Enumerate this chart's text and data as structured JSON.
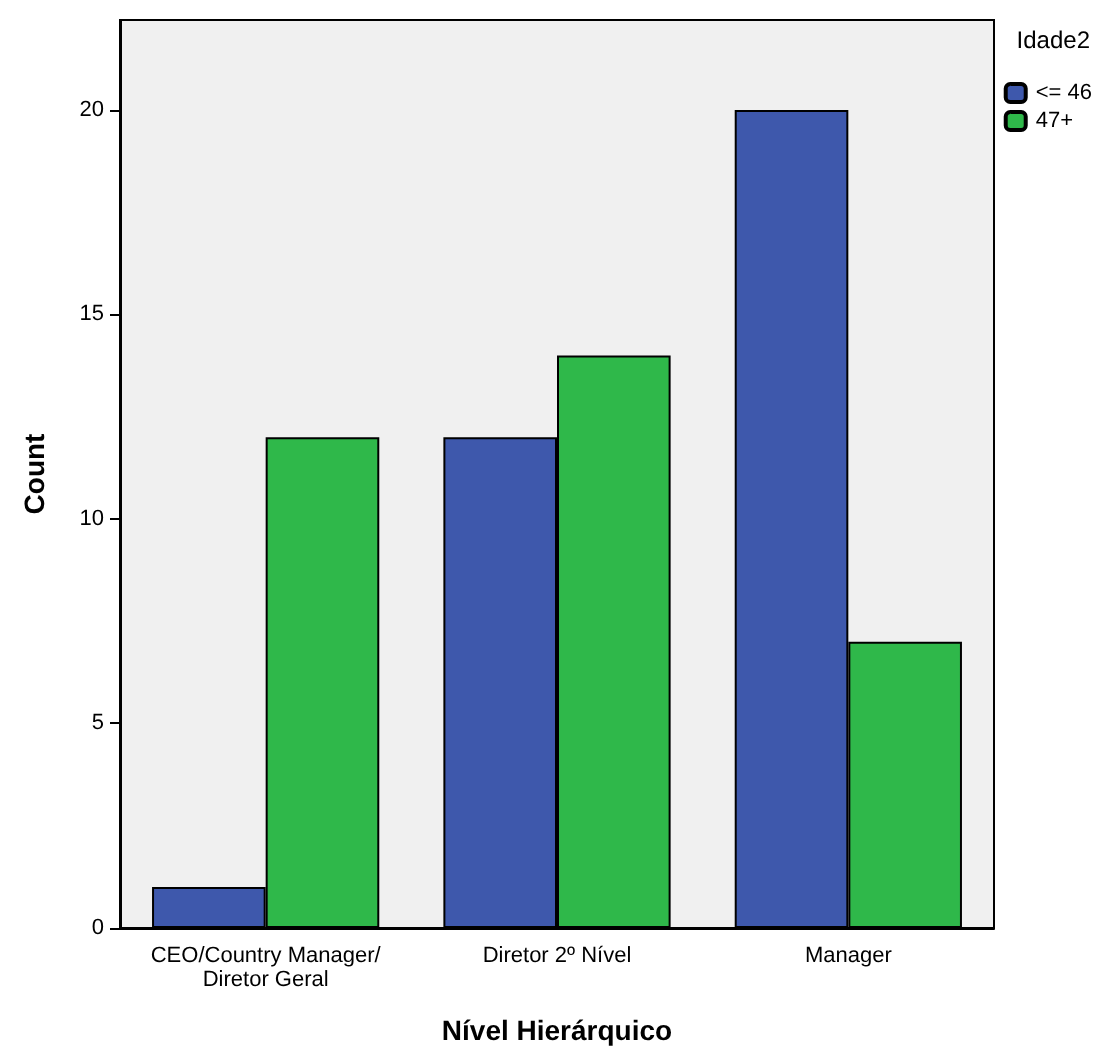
{
  "chart_data": {
    "type": "bar",
    "xlabel": "Nível Hierárquico",
    "ylabel": "Count",
    "legend_title": "Idade2",
    "categories": [
      "CEO/Country Manager/Diretor Geral",
      "Diretor 2º Nível",
      "Manager"
    ],
    "series": [
      {
        "name": "<= 46",
        "color": "#3e58ac",
        "values": [
          1,
          12,
          20
        ]
      },
      {
        "name": "47+",
        "color": "#2fb84a",
        "values": [
          12,
          14,
          7
        ]
      }
    ],
    "ylim": [
      0,
      22.2
    ],
    "yticks": [
      0,
      5,
      10,
      15,
      20
    ],
    "grid": false,
    "legend": "top right"
  }
}
